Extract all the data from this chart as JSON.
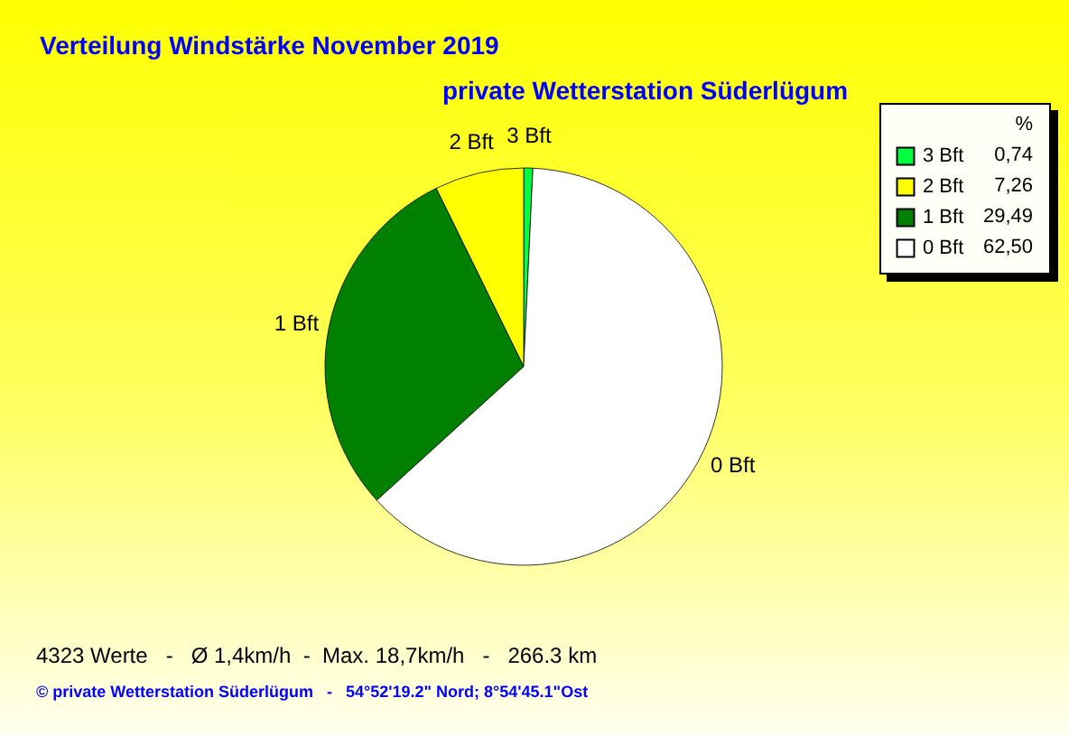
{
  "chart_data": {
    "type": "pie",
    "title": "Verteilung Windstärke  November 2019",
    "subtitle": "private Wetterstation Süderlügum",
    "legend_title": "%",
    "categories": [
      "3 Bft",
      "2 Bft",
      "1 Bft",
      "0 Bft"
    ],
    "values": [
      0.74,
      7.26,
      29.49,
      62.5
    ],
    "value_labels": [
      "0,74",
      "7,26",
      "29,49",
      "62,50"
    ],
    "colors": [
      "#00ff40",
      "#ffff00",
      "#008000",
      "#ffffff"
    ],
    "legend": "top right",
    "annotations": [
      "4323 Werte   -   Ø 1,4km/h  -  Max. 18,7km/h   -   266.3 km",
      "© private Wetterstation Süderlügum   -   54°52'19.2\" Nord; 8°54'45.1\"Ost"
    ]
  }
}
